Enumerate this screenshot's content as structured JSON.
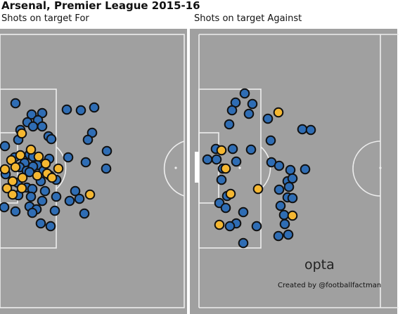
{
  "title": "Arsenal, Premier League 2015-16",
  "panels": [
    {
      "subtitle": "Shots on target For"
    },
    {
      "subtitle": "Shots on target Against"
    }
  ],
  "brand": "opta",
  "credit": "Created by @footballfactman",
  "colors": {
    "pitch": "#a0a0a0",
    "lines": "#eeeeee",
    "outside": "#ffffff",
    "saved": "#2f6db4",
    "goal": "#f5b731",
    "marker_edge": "#111111"
  },
  "chart_data": [
    {
      "type": "scatter",
      "title": "Shots on target For",
      "attacking_goal": "left",
      "legend": "none",
      "grid": false,
      "series": [
        {
          "marker": "blue",
          "points": [
            [
              22,
              147
            ],
            [
              95,
              156
            ],
            [
              115,
              157
            ],
            [
              134,
              153
            ],
            [
              45,
              163
            ],
            [
              60,
              161
            ],
            [
              54,
              171
            ],
            [
              39,
              174
            ],
            [
              47,
              180
            ],
            [
              60,
              180
            ],
            [
              29,
              185
            ],
            [
              131,
              189
            ],
            [
              26,
              199
            ],
            [
              125,
              199
            ],
            [
              7,
              208
            ],
            [
              69,
              194
            ],
            [
              73,
              198
            ],
            [
              152,
              215
            ],
            [
              42,
              220
            ],
            [
              21,
              224
            ],
            [
              47,
              223
            ],
            [
              70,
              226
            ],
            [
              97,
              224
            ],
            [
              35,
              232
            ],
            [
              53,
              235
            ],
            [
              28,
              238
            ],
            [
              62,
              243
            ],
            [
              38,
              243
            ],
            [
              47,
              237
            ],
            [
              42,
              245
            ],
            [
              122,
              231
            ],
            [
              151,
              240
            ],
            [
              8,
              248
            ],
            [
              71,
              250
            ],
            [
              80,
              256
            ],
            [
              25,
              260
            ],
            [
              58,
              258
            ],
            [
              38,
              267
            ],
            [
              46,
              269
            ],
            [
              64,
              272
            ],
            [
              107,
              272
            ],
            [
              26,
              278
            ],
            [
              44,
              280
            ],
            [
              80,
              280
            ],
            [
              60,
              286
            ],
            [
              99,
              286
            ],
            [
              113,
              283
            ],
            [
              6,
              295
            ],
            [
              22,
              301
            ],
            [
              42,
              294
            ],
            [
              52,
              298
            ],
            [
              46,
              303
            ],
            [
              78,
              300
            ],
            [
              120,
              304
            ],
            [
              58,
              318
            ],
            [
              72,
              322
            ]
          ]
        },
        {
          "marker": "yellow",
          "points": [
            [
              31,
              190
            ],
            [
              44,
              213
            ],
            [
              29,
              221
            ],
            [
              55,
              223
            ],
            [
              16,
              228
            ],
            [
              65,
              233
            ],
            [
              22,
              238
            ],
            [
              83,
              240
            ],
            [
              7,
              241
            ],
            [
              67,
              247
            ],
            [
              53,
              250
            ],
            [
              32,
              253
            ],
            [
              74,
              253
            ],
            [
              18,
              258
            ],
            [
              10,
              268
            ],
            [
              31,
              268
            ],
            [
              18,
              277
            ],
            [
              128,
              277
            ]
          ]
        }
      ]
    },
    {
      "type": "scatter",
      "title": "Shots on target Against",
      "attacking_goal": "left",
      "legend": "none",
      "grid": false,
      "series": [
        {
          "marker": "blue",
          "points": [
            [
              348,
              133
            ],
            [
              335,
              146
            ],
            [
              359,
              148
            ],
            [
              330,
              157
            ],
            [
              354,
              162
            ],
            [
              381,
              169
            ],
            [
              326,
              177
            ],
            [
              430,
              184
            ],
            [
              442,
              185
            ],
            [
              385,
              200
            ],
            [
              331,
              212
            ],
            [
              357,
              213
            ],
            [
              307,
              212
            ],
            [
              295,
              227
            ],
            [
              308,
              227
            ],
            [
              336,
              230
            ],
            [
              317,
              240
            ],
            [
              386,
              231
            ],
            [
              397,
              236
            ],
            [
              413,
              242
            ],
            [
              434,
              241
            ],
            [
              315,
              256
            ],
            [
              397,
              270
            ],
            [
              409,
              258
            ],
            [
              416,
              254
            ],
            [
              411,
              266
            ],
            [
              409,
              281
            ],
            [
              323,
              279
            ],
            [
              416,
              282
            ],
            [
              312,
              289
            ],
            [
              321,
              296
            ],
            [
              399,
              293
            ],
            [
              404,
              306
            ],
            [
              346,
              302
            ],
            [
              336,
              318
            ],
            [
              365,
              322
            ],
            [
              327,
              322
            ],
            [
              405,
              319
            ],
            [
              396,
              336
            ],
            [
              410,
              334
            ],
            [
              346,
              346
            ]
          ]
        },
        {
          "marker": "yellow",
          "points": [
            [
              396,
              160
            ],
            [
              315,
              214
            ],
            [
              321,
              240
            ],
            [
              367,
              269
            ],
            [
              328,
              276
            ],
            [
              416,
              307
            ],
            [
              312,
              320
            ]
          ]
        }
      ]
    }
  ]
}
